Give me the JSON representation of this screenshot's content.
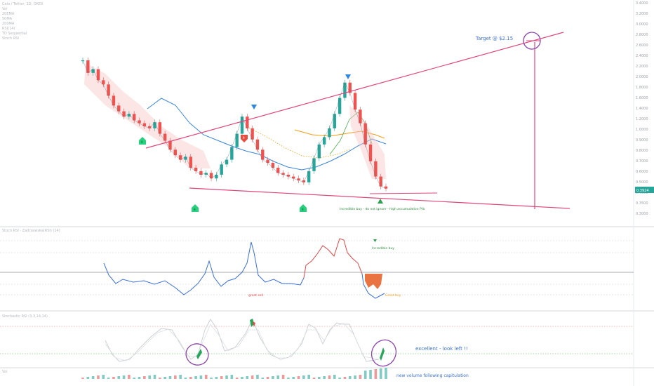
{
  "header": {
    "symbol_line": "Celo / Tether, 1D, OKEX",
    "indicators": [
      "Vol",
      "20EMA",
      "50MA",
      "200MA",
      "RSI(14)",
      "TD Sequential",
      "Stoch RSI"
    ]
  },
  "price_axis": {
    "ticks": [
      "3.4000",
      "3.2000",
      "3.0000",
      "2.8000",
      "2.6000",
      "2.4000",
      "2.2000",
      "2.0000",
      "1.8000",
      "1.6000",
      "1.4000",
      "1.2000",
      "1.0000",
      "0.9000",
      "0.8000",
      "0.7000",
      "0.6000",
      "0.5000",
      "0.4000",
      "0.3500",
      "0.3000"
    ],
    "last_price": "0.3924",
    "last_price_color": "#26a69a"
  },
  "annotations": {
    "target": "Target @ $2.15",
    "incredible_buy": "Incredible buy - do not ignore - high accumulation P/b",
    "great_sell": "great sell",
    "rsi_incredible_buy": "Incredible buy",
    "rsi_great_buy": "Great buy",
    "stoch_excellent": "excellent - look left !!",
    "volume_note": "new volume following capitulation"
  },
  "td_labels": {
    "buy_1": "9",
    "buy_2": "9",
    "buy_3": "9",
    "sell_1": "9"
  },
  "panes": {
    "rsi_title": "Stoch RSI - Zadrzewska(RSI) (14)",
    "stoch_title": "Stochastic RSI (3,3,14,14)",
    "vol_title": "Vol"
  },
  "colors": {
    "trendline": "#e0467a",
    "rsi_line_up": "#e04545",
    "rsi_line_down": "#3a6fd8",
    "ema20": "#4caf50",
    "ma50": "#3a86d8",
    "ma200": "#f39c12",
    "td_buy": "#26d07c",
    "td_sell": "#e74c3c",
    "target_text": "#3a6fd8",
    "annotation_blue": "#3a6fd8",
    "circle": "#8e44ad"
  },
  "chart_data": {
    "type": "line",
    "series": [
      {
        "values": [
          1.8,
          1.55,
          1.62,
          1.42,
          1.35,
          1.18,
          1.05,
          0.98,
          0.92,
          0.95,
          0.88,
          0.85,
          0.82,
          0.8,
          0.86,
          0.75,
          0.69,
          0.62,
          0.58,
          0.55,
          0.57,
          0.5,
          0.48,
          0.46,
          0.47,
          0.44,
          0.46,
          0.52,
          0.55,
          0.64,
          0.75,
          0.92,
          0.8,
          0.7,
          0.62,
          0.55,
          0.53,
          0.5,
          0.47,
          0.46,
          0.45,
          0.44,
          0.43,
          0.42,
          0.48,
          0.56,
          0.66,
          0.72,
          0.8,
          0.95,
          1.15,
          1.38,
          1.22,
          1.0,
          0.85,
          0.66,
          0.54,
          0.45,
          0.4,
          0.39
        ]
      }
    ]
  }
}
